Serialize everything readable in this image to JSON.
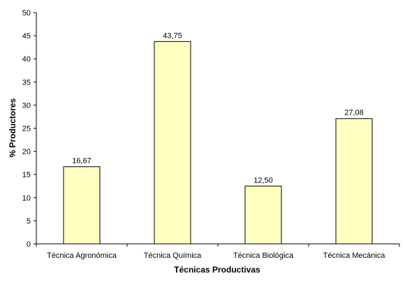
{
  "chart_data": {
    "type": "bar",
    "categories": [
      "Técnica Agronómica",
      "Técnica Química",
      "Técnica Biológica",
      "Técnica Mecánica"
    ],
    "values": [
      16.67,
      43.75,
      12.5,
      27.08
    ],
    "data_labels": [
      "16,67",
      "43,75",
      "12,50",
      "27,08"
    ],
    "title": "",
    "xlabel": "Técnicas Productivas",
    "ylabel": "% Productores",
    "ylim": [
      0,
      50
    ],
    "yticks": [
      0,
      5,
      10,
      15,
      20,
      25,
      30,
      35,
      40,
      45,
      50
    ],
    "grid": false,
    "legend": "none",
    "colors": {
      "bar_fill": "#ffffc0",
      "bar_stroke": "#000000",
      "axis": "#000000"
    }
  }
}
